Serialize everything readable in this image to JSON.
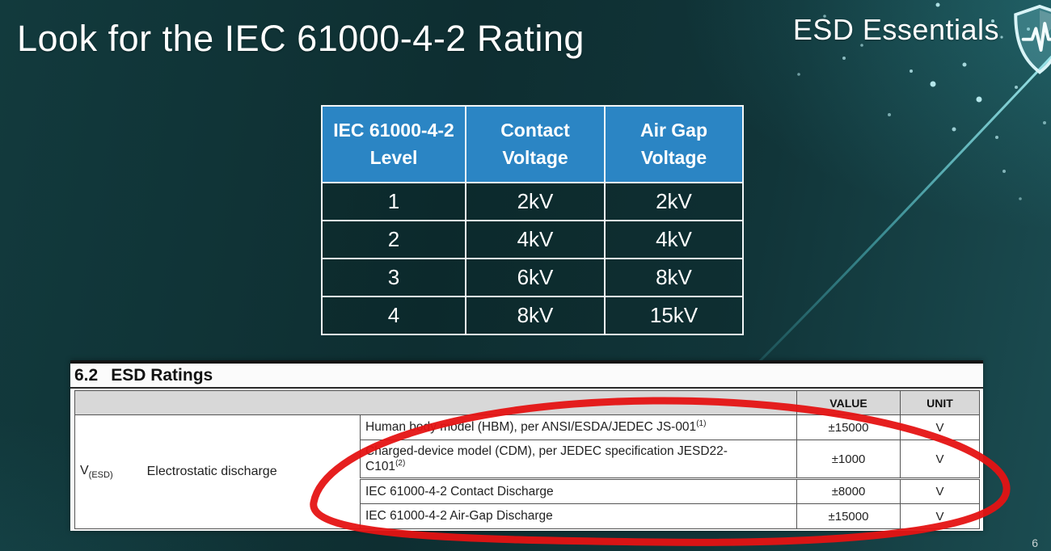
{
  "slide": {
    "title": "Look for the IEC 61000-4-2 Rating",
    "brand": "ESD Essentials",
    "page_number": "6"
  },
  "colors": {
    "background_teal": "#0e2e31",
    "table_header_blue": "#2b85c4",
    "annotation_red": "#e51313",
    "streak_teal": "#5fd8e0",
    "datasheet_header_gray": "#d8d8d8"
  },
  "iec_table": {
    "columns": [
      {
        "line1": "IEC 61000-4-2",
        "line2": "Level"
      },
      {
        "line1": "Contact",
        "line2": "Voltage"
      },
      {
        "line1": "Air Gap",
        "line2": "Voltage"
      }
    ],
    "rows": [
      {
        "level": "1",
        "contact": "2kV",
        "air_gap": "2kV"
      },
      {
        "level": "2",
        "contact": "4kV",
        "air_gap": "4kV"
      },
      {
        "level": "3",
        "contact": "6kV",
        "air_gap": "8kV"
      },
      {
        "level": "4",
        "contact": "8kV",
        "air_gap": "15kV"
      }
    ]
  },
  "datasheet": {
    "section": "6.2",
    "section_title": "ESD Ratings",
    "value_header": "VALUE",
    "unit_header": "UNIT",
    "symbol": "V",
    "symbol_sub": "(ESD)",
    "symbol_description": "Electrostatic discharge",
    "rows": [
      {
        "line1": "Human body model (HBM), per ANSI/ESDA/JEDEC JS-001",
        "sup1": "(1)",
        "line2": "",
        "sup2": "",
        "value": "±15000",
        "unit": "V"
      },
      {
        "line1": "Charged-device model (CDM), per JEDEC specification JESD22-",
        "sup1": "",
        "line2": "C101",
        "sup2": "(2)",
        "value": "±1000",
        "unit": "V"
      },
      {
        "line1": "IEC 61000-4-2 Contact Discharge",
        "sup1": "",
        "line2": "",
        "sup2": "",
        "value": "±8000",
        "unit": "V"
      },
      {
        "line1": "IEC 61000-4-2 Air-Gap Discharge",
        "sup1": "",
        "line2": "",
        "sup2": "",
        "value": "±15000",
        "unit": "V"
      }
    ]
  }
}
